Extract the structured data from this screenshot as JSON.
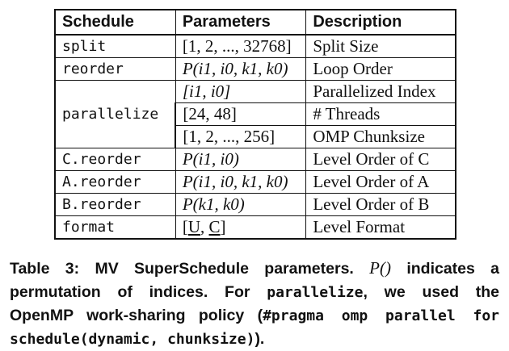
{
  "table": {
    "headers": {
      "schedule": "Schedule",
      "parameters": "Parameters",
      "description": "Description"
    },
    "rows": [
      {
        "schedule": "split",
        "parameters": "[1, 2, ..., 32768]",
        "description": "Split Size"
      },
      {
        "schedule": "reorder",
        "parameters": "P(i1, i0, k1, k0)",
        "description": "Loop Order"
      },
      {
        "schedule": "parallelize",
        "parameters": "[i1, i0]",
        "description": "Parallelized Index"
      },
      {
        "schedule": "",
        "parameters": "[24, 48]",
        "description": "# Threads"
      },
      {
        "schedule": "",
        "parameters": "[1, 2, ..., 256]",
        "description": "OMP Chunksize"
      },
      {
        "schedule": "C.reorder",
        "parameters": "P(i1, i0)",
        "description": "Level Order of C"
      },
      {
        "schedule": "A.reorder",
        "parameters": "P(i1, i0, k1, k0)",
        "description": "Level Order of A"
      },
      {
        "schedule": "B.reorder",
        "parameters": "P(k1, k0)",
        "description": "Level Order of B"
      },
      {
        "schedule": "format",
        "parameters": "[U, C]",
        "description": "Level Format"
      }
    ]
  },
  "caption": {
    "line1_a": "Table 3: MV SuperSchedule parameters.",
    "line1_p": "P()",
    "line1_b": "indicates a",
    "line2_a": "permutation of indices. For",
    "line2_code": "parallelize",
    "line2_b": ", we used the",
    "line3_a": "OpenMP work-sharing policy (",
    "line3_code": "#pragma omp parallel for",
    "line4_code": "schedule(dynamic, chunksize)",
    "line4_b": ")."
  }
}
